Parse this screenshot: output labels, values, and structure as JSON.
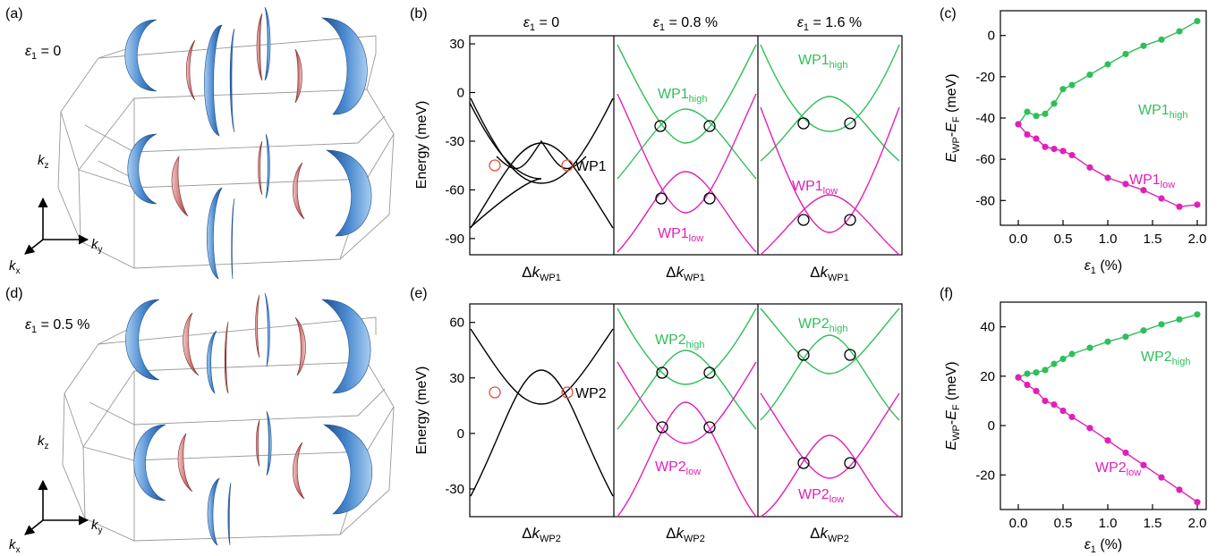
{
  "panels": {
    "a": {
      "label": "(a)",
      "strain_label": "ε",
      "strain_sub": "1",
      "strain_value": " = 0"
    },
    "b": {
      "label": "(b)"
    },
    "c": {
      "label": "(c)"
    },
    "d": {
      "label": "(d)",
      "strain_label": "ε",
      "strain_sub": "1",
      "strain_value": " = 0.5 %"
    },
    "e": {
      "label": "(e)"
    },
    "f": {
      "label": "(f)"
    }
  },
  "axes3d": {
    "kz": "k",
    "kz_sub": "z",
    "ky": "k",
    "ky_sub": "y",
    "kx": "k",
    "kx_sub": "x"
  },
  "band_panels": {
    "col_titles": [
      {
        "sym": "ε",
        "sub": "1",
        "val": " = 0"
      },
      {
        "sym": "ε",
        "sub": "1",
        "val": " = 0.8 %"
      },
      {
        "sym": "ε",
        "sub": "1",
        "val": " = 1.6 %"
      }
    ],
    "ylabel": "Energy (meV)",
    "top_xlabel": {
      "delta": "Δ",
      "k": "k",
      "sub": "WP1"
    },
    "bottom_xlabel": {
      "delta": "Δ",
      "k": "k",
      "sub": "WP2"
    },
    "top_yticks": [
      30,
      0,
      -30,
      -60,
      -90
    ],
    "top_ylim": [
      -100,
      35
    ],
    "bottom_yticks": [
      60,
      30,
      0,
      -30
    ],
    "bottom_ylim": [
      -45,
      70
    ],
    "labels": {
      "wp1": "WP1",
      "wp2": "WP2",
      "wp1_high_base": "WP1",
      "high_sub": "high",
      "wp1_low_base": "WP1",
      "low_sub": "low",
      "wp2_high_base": "WP2",
      "wp2_low_base": "WP2"
    }
  },
  "colors": {
    "green": "#2fbf5a",
    "magenta": "#e020b8",
    "blue": "#3d7fc4",
    "red": "#c86464",
    "black": "#000000",
    "circle_red": "#e0503c"
  },
  "chart_data": [
    {
      "type": "line",
      "panel": "c",
      "ylabel": {
        "E": "E",
        "WP": "WP",
        "dash": "-",
        "E2": "E",
        "F": "F",
        "unit": " (meV)"
      },
      "xlabel": {
        "sym": "ε",
        "sub": "1",
        "unit": " (%)"
      },
      "xlim": [
        -0.2,
        2.1
      ],
      "ylim": [
        -92,
        12
      ],
      "xticks": [
        0.0,
        0.5,
        1.0,
        1.5,
        2.0
      ],
      "yticks": [
        0,
        -20,
        -40,
        -60,
        -80
      ],
      "series": [
        {
          "name": "WP1",
          "name_sub": "high",
          "color": "green",
          "x": [
            0,
            0.1,
            0.2,
            0.3,
            0.4,
            0.5,
            0.6,
            0.8,
            1.0,
            1.2,
            1.4,
            1.6,
            1.8,
            2.0
          ],
          "y": [
            -43,
            -37,
            -39,
            -38,
            -33,
            -26,
            -24,
            -19,
            -14,
            -9,
            -5,
            -2,
            2,
            7
          ]
        },
        {
          "name": "WP1",
          "name_sub": "low",
          "color": "magenta",
          "x": [
            0,
            0.1,
            0.2,
            0.3,
            0.4,
            0.5,
            0.6,
            0.8,
            1.0,
            1.2,
            1.4,
            1.6,
            1.8,
            2.0
          ],
          "y": [
            -43,
            -48,
            -50,
            -54,
            -55,
            -56,
            -58,
            -64,
            -69,
            -72,
            -75,
            -79,
            -83,
            -82
          ]
        }
      ]
    },
    {
      "type": "line",
      "panel": "f",
      "ylabel": {
        "E": "E",
        "WP": "WP",
        "dash": "-",
        "E2": "E",
        "F": "F",
        "unit": " (meV)"
      },
      "xlabel": {
        "sym": "ε",
        "sub": "1",
        "unit": " (%)"
      },
      "xlim": [
        -0.2,
        2.1
      ],
      "ylim": [
        -34,
        50
      ],
      "xticks": [
        0.0,
        0.5,
        1.0,
        1.5,
        2.0
      ],
      "yticks": [
        40,
        20,
        0,
        -20
      ],
      "series": [
        {
          "name": "WP2",
          "name_sub": "high",
          "color": "green",
          "x": [
            0,
            0.1,
            0.2,
            0.3,
            0.4,
            0.5,
            0.6,
            0.8,
            1.0,
            1.2,
            1.4,
            1.6,
            1.8,
            2.0
          ],
          "y": [
            19.5,
            21,
            21.5,
            22.5,
            25,
            27,
            29,
            31.5,
            34,
            36,
            38.5,
            41,
            43,
            45
          ]
        },
        {
          "name": "WP2",
          "name_sub": "low",
          "color": "magenta",
          "x": [
            0,
            0.1,
            0.2,
            0.3,
            0.4,
            0.5,
            0.6,
            0.8,
            1.0,
            1.2,
            1.4,
            1.6,
            1.8,
            2.0
          ],
          "y": [
            19.5,
            16.5,
            14,
            10,
            8.5,
            6,
            3.5,
            -1,
            -6,
            -11,
            -16,
            -21,
            -26,
            -31
          ]
        }
      ]
    }
  ]
}
